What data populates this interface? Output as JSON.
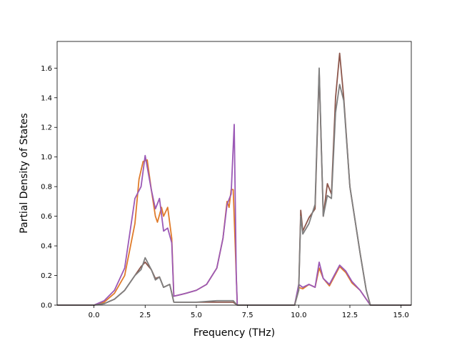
{
  "chart_data": {
    "type": "line",
    "xlabel": "Frequency (THz)",
    "ylabel": "Partial Density of States",
    "xlim": [
      -1.8,
      15.5
    ],
    "ylim": [
      0.0,
      1.78
    ],
    "xticks": [
      0.0,
      2.5,
      5.0,
      7.5,
      10.0,
      12.5,
      15.0
    ],
    "xtick_labels": [
      "0.0",
      "2.5",
      "5.0",
      "7.5",
      "10.0",
      "12.5",
      "15.0"
    ],
    "yticks": [
      0.0,
      0.2,
      0.4,
      0.6,
      0.8,
      1.0,
      1.2,
      1.4,
      1.6
    ],
    "ytick_labels": [
      "0.0",
      "0.2",
      "0.4",
      "0.6",
      "0.8",
      "1.0",
      "1.2",
      "1.4",
      "1.6"
    ],
    "grid": false,
    "legend": "none",
    "series": [
      {
        "color": "#e07b2a",
        "points": [
          [
            -1.8,
            0
          ],
          [
            0,
            0
          ],
          [
            0.5,
            0.02
          ],
          [
            1,
            0.08
          ],
          [
            1.5,
            0.2
          ],
          [
            2,
            0.55
          ],
          [
            2.2,
            0.85
          ],
          [
            2.4,
            0.97
          ],
          [
            2.6,
            0.98
          ],
          [
            2.8,
            0.78
          ],
          [
            3,
            0.6
          ],
          [
            3.1,
            0.56
          ],
          [
            3.3,
            0.66
          ],
          [
            3.4,
            0.6
          ],
          [
            3.6,
            0.66
          ],
          [
            3.8,
            0.45
          ],
          [
            3.9,
            0.06
          ],
          [
            4.5,
            0.08
          ],
          [
            5,
            0.1
          ],
          [
            5.5,
            0.14
          ],
          [
            6,
            0.25
          ],
          [
            6.3,
            0.45
          ],
          [
            6.5,
            0.7
          ],
          [
            6.6,
            0.66
          ],
          [
            6.7,
            0.78
          ],
          [
            6.8,
            0.78
          ],
          [
            6.9,
            0.4
          ],
          [
            7.0,
            0
          ],
          [
            9.8,
            0
          ],
          [
            10,
            0.12
          ],
          [
            10.2,
            0.11
          ],
          [
            10.5,
            0.14
          ],
          [
            10.8,
            0.12
          ],
          [
            11.0,
            0.25
          ],
          [
            11.2,
            0.18
          ],
          [
            11.5,
            0.13
          ],
          [
            12,
            0.26
          ],
          [
            12.3,
            0.22
          ],
          [
            12.6,
            0.15
          ],
          [
            13,
            0.1
          ],
          [
            13.5,
            0
          ],
          [
            15.5,
            0
          ]
        ]
      },
      {
        "color": "#9b59b6",
        "points": [
          [
            -1.8,
            0
          ],
          [
            0,
            0
          ],
          [
            0.5,
            0.03
          ],
          [
            1,
            0.1
          ],
          [
            1.5,
            0.25
          ],
          [
            2,
            0.72
          ],
          [
            2.3,
            0.8
          ],
          [
            2.5,
            1.01
          ],
          [
            2.8,
            0.78
          ],
          [
            3,
            0.65
          ],
          [
            3.2,
            0.72
          ],
          [
            3.4,
            0.5
          ],
          [
            3.6,
            0.52
          ],
          [
            3.8,
            0.42
          ],
          [
            3.9,
            0.06
          ],
          [
            4.5,
            0.08
          ],
          [
            5,
            0.1
          ],
          [
            5.5,
            0.14
          ],
          [
            6,
            0.25
          ],
          [
            6.3,
            0.45
          ],
          [
            6.5,
            0.68
          ],
          [
            6.7,
            0.75
          ],
          [
            6.85,
            1.22
          ],
          [
            6.95,
            0.2
          ],
          [
            7.0,
            0
          ],
          [
            9.8,
            0
          ],
          [
            10,
            0.14
          ],
          [
            10.2,
            0.12
          ],
          [
            10.5,
            0.14
          ],
          [
            10.8,
            0.12
          ],
          [
            11.0,
            0.29
          ],
          [
            11.2,
            0.18
          ],
          [
            11.5,
            0.14
          ],
          [
            12,
            0.27
          ],
          [
            12.3,
            0.23
          ],
          [
            12.6,
            0.16
          ],
          [
            13,
            0.1
          ],
          [
            13.5,
            0
          ],
          [
            15.5,
            0
          ]
        ]
      },
      {
        "color": "#8c564b",
        "points": [
          [
            -1.8,
            0
          ],
          [
            0,
            0
          ],
          [
            0.5,
            0.01
          ],
          [
            1,
            0.04
          ],
          [
            1.5,
            0.1
          ],
          [
            2,
            0.2
          ],
          [
            2.3,
            0.26
          ],
          [
            2.5,
            0.29
          ],
          [
            2.8,
            0.24
          ],
          [
            3,
            0.18
          ],
          [
            3.2,
            0.19
          ],
          [
            3.4,
            0.12
          ],
          [
            3.7,
            0.14
          ],
          [
            3.9,
            0.02
          ],
          [
            5,
            0.02
          ],
          [
            6,
            0.02
          ],
          [
            6.8,
            0.02
          ],
          [
            7.0,
            0
          ],
          [
            9.8,
            0
          ],
          [
            10,
            0.1
          ],
          [
            10.1,
            0.64
          ],
          [
            10.2,
            0.5
          ],
          [
            10.5,
            0.59
          ],
          [
            10.8,
            0.65
          ],
          [
            11.0,
            1.58
          ],
          [
            11.2,
            0.6
          ],
          [
            11.4,
            0.82
          ],
          [
            11.6,
            0.75
          ],
          [
            11.8,
            1.4
          ],
          [
            12,
            1.7
          ],
          [
            12.2,
            1.4
          ],
          [
            12.5,
            0.8
          ],
          [
            13,
            0.35
          ],
          [
            13.3,
            0.1
          ],
          [
            13.5,
            0
          ],
          [
            15.5,
            0
          ]
        ]
      },
      {
        "color": "#7f7f7f",
        "points": [
          [
            -1.8,
            0
          ],
          [
            0,
            0
          ],
          [
            0.5,
            0.01
          ],
          [
            1,
            0.04
          ],
          [
            1.5,
            0.1
          ],
          [
            2,
            0.2
          ],
          [
            2.3,
            0.24
          ],
          [
            2.5,
            0.32
          ],
          [
            2.8,
            0.24
          ],
          [
            3,
            0.17
          ],
          [
            3.2,
            0.19
          ],
          [
            3.4,
            0.12
          ],
          [
            3.7,
            0.14
          ],
          [
            3.9,
            0.02
          ],
          [
            5,
            0.02
          ],
          [
            6,
            0.03
          ],
          [
            6.8,
            0.03
          ],
          [
            7.0,
            0
          ],
          [
            9.8,
            0
          ],
          [
            10,
            0.1
          ],
          [
            10.1,
            0.6
          ],
          [
            10.2,
            0.48
          ],
          [
            10.5,
            0.55
          ],
          [
            10.8,
            0.68
          ],
          [
            11.0,
            1.6
          ],
          [
            11.2,
            0.6
          ],
          [
            11.4,
            0.74
          ],
          [
            11.6,
            0.72
          ],
          [
            11.8,
            1.3
          ],
          [
            12,
            1.49
          ],
          [
            12.2,
            1.38
          ],
          [
            12.5,
            0.8
          ],
          [
            13,
            0.35
          ],
          [
            13.3,
            0.1
          ],
          [
            13.5,
            0
          ],
          [
            15.5,
            0
          ]
        ]
      }
    ]
  }
}
